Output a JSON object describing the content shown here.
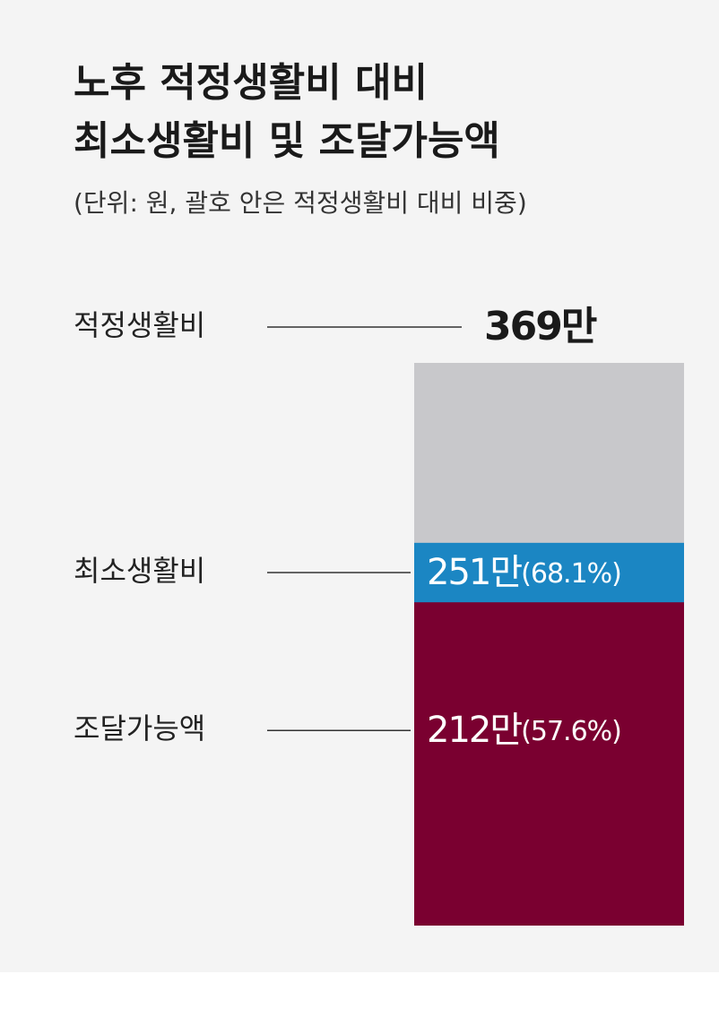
{
  "chart_data": {
    "type": "nested-bar",
    "title": [
      "노후 적정생활비 대비",
      "최소생활비 및 조달가능액"
    ],
    "subtitle": "(단위: 원, 괄호 안은 적정생활비 대비 비중)",
    "categories": [
      "적정생활비",
      "최소생활비",
      "조달가능액"
    ],
    "values": [
      369,
      251,
      212
    ],
    "value_labels": [
      "369만",
      "251만",
      "212만"
    ],
    "share_labels": [
      null,
      "(68.1%)",
      "(57.6%)"
    ],
    "colors": [
      "#c8c8cb",
      "#1b86c3",
      "#7a0030"
    ]
  }
}
